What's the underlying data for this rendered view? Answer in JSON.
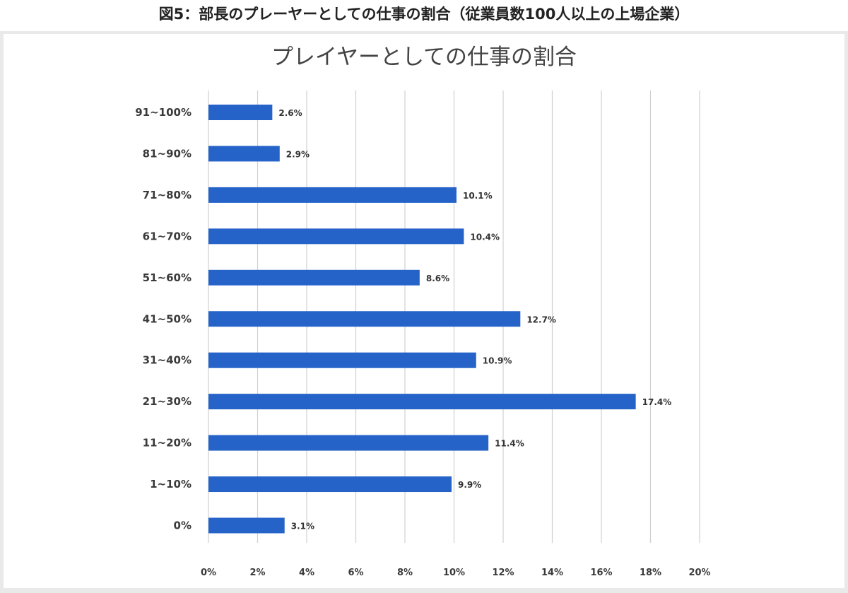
{
  "page_caption": "図5：部長のプレーヤーとしての仕事の割合（従業員数100人以上の上場企業）",
  "colors": {
    "bar": "#2563c9",
    "grid": "#d0d0d0",
    "frame": "#e9e9e9"
  },
  "chart_data": {
    "type": "bar",
    "orientation": "horizontal",
    "title": "プレイヤーとしての仕事の割合",
    "xlabel": "",
    "ylabel": "",
    "categories": [
      "91~100%",
      "81~90%",
      "71~80%",
      "61~70%",
      "51~60%",
      "41~50%",
      "31~40%",
      "21~30%",
      "11~20%",
      "1~10%",
      "0%"
    ],
    "values": [
      2.6,
      2.9,
      10.1,
      10.4,
      8.6,
      12.7,
      10.9,
      17.4,
      11.4,
      9.9,
      3.1
    ],
    "value_labels": [
      "2.6%",
      "2.9%",
      "10.1%",
      "10.4%",
      "8.6%",
      "12.7%",
      "10.9%",
      "17.4%",
      "11.4%",
      "9.9%",
      "3.1%"
    ],
    "xlim": [
      0,
      20
    ],
    "x_ticks": [
      0,
      2,
      4,
      6,
      8,
      10,
      12,
      14,
      16,
      18,
      20
    ],
    "x_tick_labels": [
      "0%",
      "2%",
      "4%",
      "6%",
      "8%",
      "10%",
      "12%",
      "14%",
      "16%",
      "18%",
      "20%"
    ],
    "grid": true,
    "legend": "none"
  }
}
